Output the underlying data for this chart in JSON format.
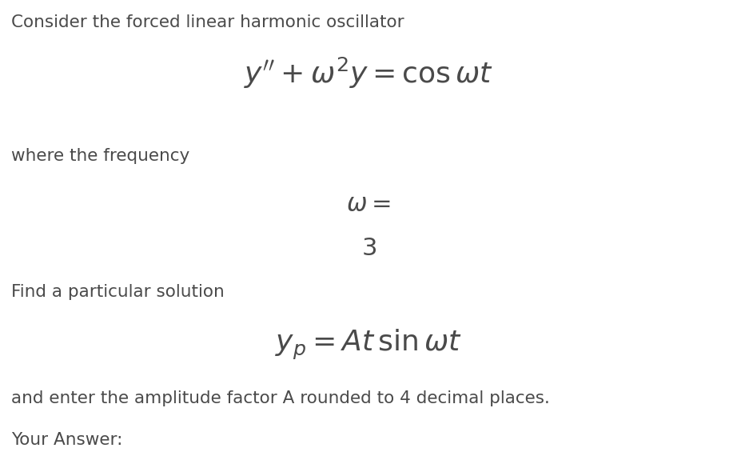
{
  "background_color": "#ffffff",
  "text_color": "#4a4a4a",
  "title_line": "Consider the forced linear harmonic oscillator",
  "freq_label": "where the frequency",
  "particular_label": "Find a particular solution",
  "footer_line": "and enter the amplitude factor A rounded to 4 decimal places.",
  "answer_label": "Your Answer:",
  "font_size_body": 15.5,
  "font_size_eq": 26,
  "font_size_eq_small": 22,
  "font_size_val": 22,
  "fig_width": 9.22,
  "fig_height": 5.95,
  "dpi": 100
}
